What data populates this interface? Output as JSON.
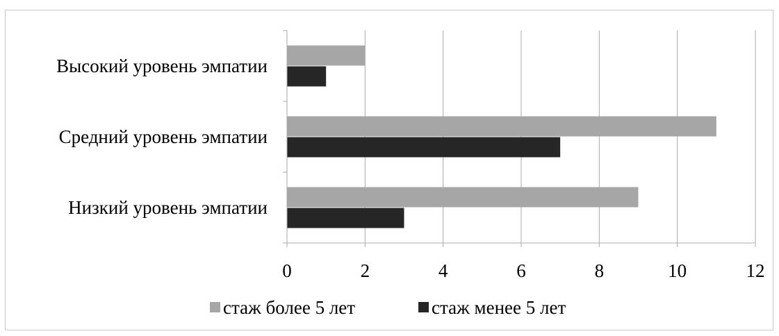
{
  "chart_data": {
    "type": "bar",
    "orientation": "horizontal",
    "categories": [
      "Высокий уровень эмпатии",
      "Средний уровень эмпатии",
      "Низкий уровень эмпатии"
    ],
    "series": [
      {
        "name": "стаж более 5 лет",
        "color": "#a6a6a6",
        "values": [
          2,
          11,
          9
        ]
      },
      {
        "name": "стаж менее 5 лет",
        "color": "#262626",
        "values": [
          1,
          7,
          3
        ]
      }
    ],
    "x_ticks": [
      "0",
      "2",
      "4",
      "6",
      "8",
      "10",
      "12"
    ],
    "xlim": [
      0,
      12
    ],
    "grid": "vertical",
    "legend_position": "bottom"
  }
}
